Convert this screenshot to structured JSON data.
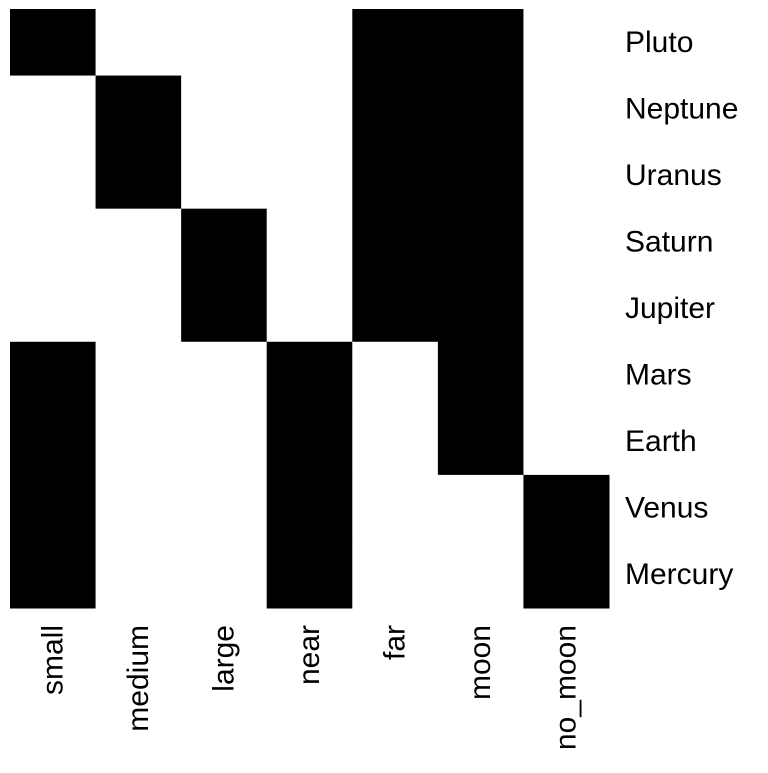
{
  "chart_data": {
    "type": "heatmap",
    "title": "",
    "xlabel": "",
    "ylabel": "",
    "grid": false,
    "legend": "none",
    "colors": {
      "filled": "#000000",
      "empty": "#ffffff"
    },
    "columns": [
      "small",
      "medium",
      "large",
      "near",
      "far",
      "moon",
      "no_moon"
    ],
    "rows": [
      "Pluto",
      "Neptune",
      "Uranus",
      "Saturn",
      "Jupiter",
      "Mars",
      "Earth",
      "Venus",
      "Mercury"
    ],
    "values": [
      [
        1,
        0,
        0,
        0,
        1,
        1,
        0
      ],
      [
        0,
        1,
        0,
        0,
        1,
        1,
        0
      ],
      [
        0,
        1,
        0,
        0,
        1,
        1,
        0
      ],
      [
        0,
        0,
        1,
        0,
        1,
        1,
        0
      ],
      [
        0,
        0,
        1,
        0,
        1,
        1,
        0
      ],
      [
        1,
        0,
        0,
        1,
        0,
        1,
        0
      ],
      [
        1,
        0,
        0,
        1,
        0,
        1,
        0
      ],
      [
        1,
        0,
        0,
        1,
        0,
        0,
        1
      ],
      [
        1,
        0,
        0,
        1,
        0,
        0,
        1
      ]
    ]
  }
}
